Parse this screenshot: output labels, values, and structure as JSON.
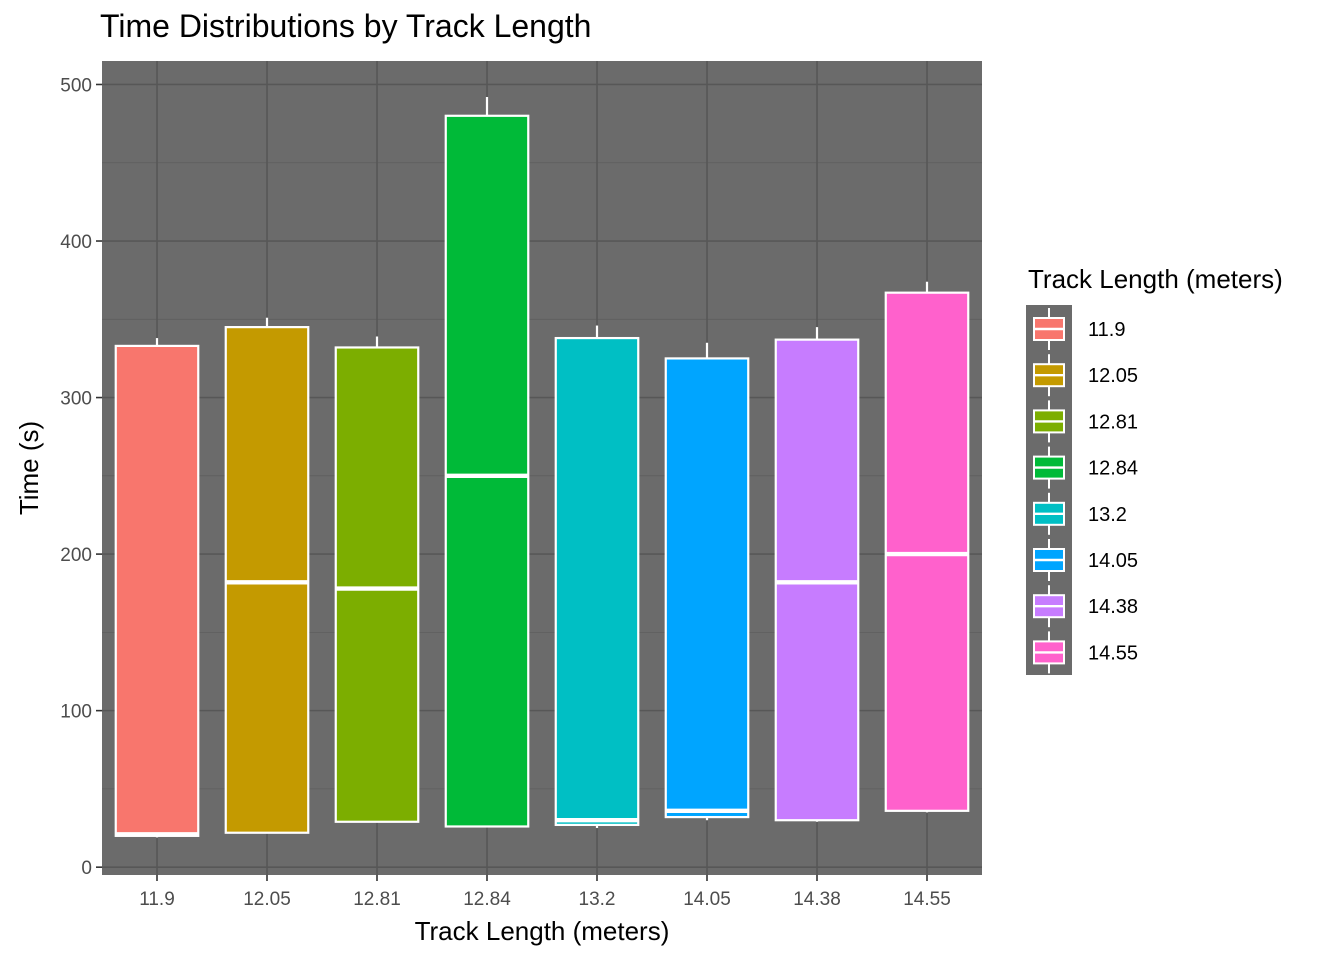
{
  "chart_data": {
    "type": "boxplot",
    "title": "Time Distributions by Track Length",
    "xlabel": "Track Length (meters)",
    "ylabel": "Time (s)",
    "ylim": [
      -5,
      515
    ],
    "yticks": [
      0,
      100,
      200,
      300,
      400,
      500
    ],
    "grid": true,
    "legend": {
      "title": "Track Length (meters)",
      "placement": "right"
    },
    "categories": [
      "11.9",
      "12.05",
      "12.81",
      "12.84",
      "13.2",
      "14.05",
      "14.38",
      "14.55"
    ],
    "colors": [
      "#F8766D",
      "#C49A00",
      "#7CAE00",
      "#00BA38",
      "#00BFC4",
      "#00A5FF",
      "#C77CFF",
      "#FF61CC"
    ],
    "boxes": [
      {
        "category": "11.9",
        "min": 19,
        "q1": 20,
        "median": 21,
        "q3": 333,
        "max": 338
      },
      {
        "category": "12.05",
        "min": 22,
        "q1": 22,
        "median": 182,
        "q3": 345,
        "max": 351
      },
      {
        "category": "12.81",
        "min": 29,
        "q1": 29,
        "median": 178,
        "q3": 332,
        "max": 339
      },
      {
        "category": "12.84",
        "min": 26,
        "q1": 26,
        "median": 250,
        "q3": 480,
        "max": 492
      },
      {
        "category": "13.2",
        "min": 25,
        "q1": 27,
        "median": 30,
        "q3": 338,
        "max": 346
      },
      {
        "category": "14.05",
        "min": 30,
        "q1": 32,
        "median": 36,
        "q3": 325,
        "max": 335
      },
      {
        "category": "14.38",
        "min": 29,
        "q1": 30,
        "median": 182,
        "q3": 337,
        "max": 345
      },
      {
        "category": "14.55",
        "min": 35,
        "q1": 36,
        "median": 200,
        "q3": 367,
        "max": 374
      }
    ]
  }
}
